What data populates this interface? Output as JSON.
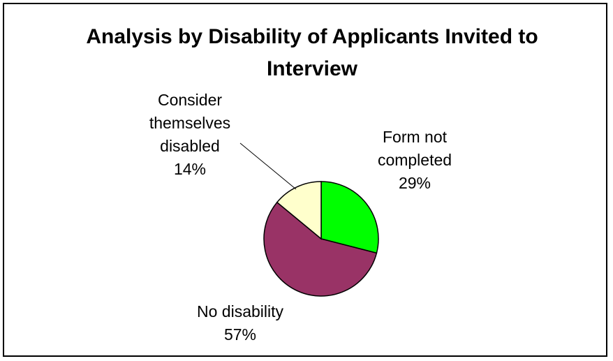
{
  "chart_data": {
    "type": "pie",
    "title": "Analysis by Disability of Applicants Invited to Interview",
    "title_lines": [
      "Analysis by Disability of Applicants Invited to",
      "Interview"
    ],
    "slices": [
      {
        "name": "Form not completed",
        "label_lines": [
          "Form not",
          "completed"
        ],
        "value": 29,
        "value_label": "29%",
        "color": "#00ff00"
      },
      {
        "name": "No disability",
        "label_lines": [
          "No disability"
        ],
        "value": 57,
        "value_label": "57%",
        "color": "#993366"
      },
      {
        "name": "Consider themselves disabled",
        "label_lines": [
          "Consider",
          "themselves",
          "disabled"
        ],
        "value": 14,
        "value_label": "14%",
        "color": "#ffffcc"
      }
    ],
    "legend": "none",
    "border_color": "#000000"
  }
}
